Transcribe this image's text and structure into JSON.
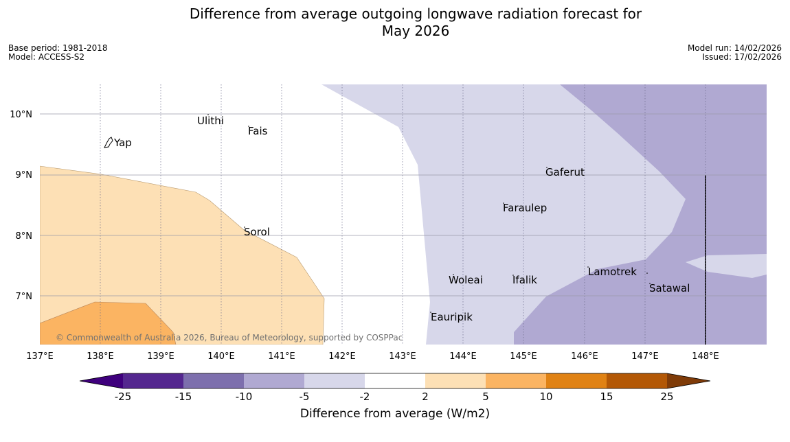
{
  "title_line1": "Difference from average outgoing longwave radiation forecast for",
  "title_line2": "May 2026",
  "meta": {
    "base_period": "Base period: 1981-2018",
    "model": "Model: ACCESS-S2",
    "model_run": "Model run: 14/02/2026",
    "issued": "Issued: 17/02/2026"
  },
  "axes": {
    "lon_ticks": [
      "137°E",
      "138°E",
      "139°E",
      "140°E",
      "141°E",
      "142°E",
      "143°E",
      "144°E",
      "145°E",
      "146°E",
      "147°E",
      "148°E"
    ],
    "lat_ticks": [
      "10°N",
      "9°N",
      "8°N",
      "7°N"
    ]
  },
  "places": [
    "Ulithi",
    "Fais",
    "Yap",
    "Gaferut",
    "Faraulep",
    "Sorol",
    "Woleai",
    "Ifalik",
    "Lamotrek",
    "Satawal",
    "Eauripik"
  ],
  "copyright": "© Commonwealth of Australia 2026, Bureau of Meteorology, supported by COSPPac",
  "colorbar": {
    "ticks": [
      "-25",
      "-15",
      "-10",
      "-5",
      "-2",
      "2",
      "5",
      "10",
      "15",
      "25"
    ],
    "label": "Difference from average (W/m2)",
    "colors": [
      "#3f007d",
      "#54278f",
      "#7d6fad",
      "#b0a9d2",
      "#d7d7ea",
      "#ffffff",
      "#fde0b5",
      "#fbb462",
      "#e08214",
      "#b35806",
      "#7f3b08"
    ]
  }
}
